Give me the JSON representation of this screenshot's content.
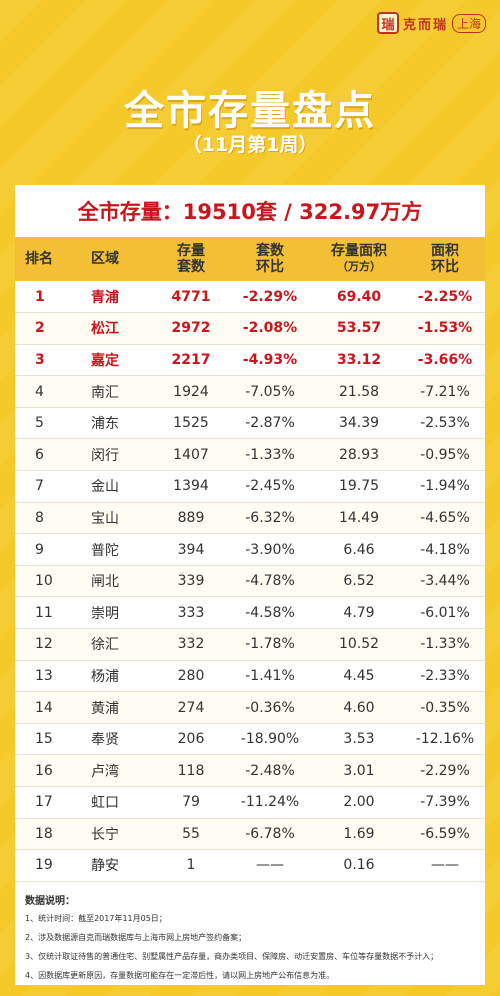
{
  "brand": {
    "seal": "瑞",
    "name": "克而瑞",
    "region": "上海"
  },
  "title": "全市存量盘点",
  "subtitle": "（11月第1周）",
  "total": "全市存量：19510套 / 322.97万方",
  "table": {
    "headers": {
      "rank": "排名",
      "area": "区域",
      "units": [
        "存量",
        "套数"
      ],
      "units_change": [
        "套数",
        "环比"
      ],
      "floor": [
        "存量面积",
        "（万方）"
      ],
      "floor_change": [
        "面积",
        "环比"
      ]
    },
    "rows": [
      {
        "rank": "1",
        "area": "青浦",
        "units": "4771",
        "units_change": "-2.29%",
        "floor": "69.40",
        "floor_change": "-2.25%"
      },
      {
        "rank": "2",
        "area": "松江",
        "units": "2972",
        "units_change": "-2.08%",
        "floor": "53.57",
        "floor_change": "-1.53%"
      },
      {
        "rank": "3",
        "area": "嘉定",
        "units": "2217",
        "units_change": "-4.93%",
        "floor": "33.12",
        "floor_change": "-3.66%"
      },
      {
        "rank": "4",
        "area": "南汇",
        "units": "1924",
        "units_change": "-7.05%",
        "floor": "21.58",
        "floor_change": "-7.21%"
      },
      {
        "rank": "5",
        "area": "浦东",
        "units": "1525",
        "units_change": "-2.87%",
        "floor": "34.39",
        "floor_change": "-2.53%"
      },
      {
        "rank": "6",
        "area": "闵行",
        "units": "1407",
        "units_change": "-1.33%",
        "floor": "28.93",
        "floor_change": "-0.95%"
      },
      {
        "rank": "7",
        "area": "金山",
        "units": "1394",
        "units_change": "-2.45%",
        "floor": "19.75",
        "floor_change": "-1.94%"
      },
      {
        "rank": "8",
        "area": "宝山",
        "units": "889",
        "units_change": "-6.32%",
        "floor": "14.49",
        "floor_change": "-4.65%"
      },
      {
        "rank": "9",
        "area": "普陀",
        "units": "394",
        "units_change": "-3.90%",
        "floor": "6.46",
        "floor_change": "-4.18%"
      },
      {
        "rank": "10",
        "area": "闸北",
        "units": "339",
        "units_change": "-4.78%",
        "floor": "6.52",
        "floor_change": "-3.44%"
      },
      {
        "rank": "11",
        "area": "崇明",
        "units": "333",
        "units_change": "-4.58%",
        "floor": "4.79",
        "floor_change": "-6.01%"
      },
      {
        "rank": "12",
        "area": "徐汇",
        "units": "332",
        "units_change": "-1.78%",
        "floor": "10.52",
        "floor_change": "-1.33%"
      },
      {
        "rank": "13",
        "area": "杨浦",
        "units": "280",
        "units_change": "-1.41%",
        "floor": "4.45",
        "floor_change": "-2.33%"
      },
      {
        "rank": "14",
        "area": "黄浦",
        "units": "274",
        "units_change": "-0.36%",
        "floor": "4.60",
        "floor_change": "-0.35%"
      },
      {
        "rank": "15",
        "area": "奉贤",
        "units": "206",
        "units_change": "-18.90%",
        "floor": "3.53",
        "floor_change": "-12.16%"
      },
      {
        "rank": "16",
        "area": "卢湾",
        "units": "118",
        "units_change": "-2.48%",
        "floor": "3.01",
        "floor_change": "-2.29%"
      },
      {
        "rank": "17",
        "area": "虹口",
        "units": "79",
        "units_change": "-11.24%",
        "floor": "2.00",
        "floor_change": "-7.39%"
      },
      {
        "rank": "18",
        "area": "长宁",
        "units": "55",
        "units_change": "-6.78%",
        "floor": "1.69",
        "floor_change": "-6.59%"
      },
      {
        "rank": "19",
        "area": "静安",
        "units": "1",
        "units_change": "——",
        "floor": "0.16",
        "floor_change": "——"
      }
    ]
  },
  "notes": {
    "title": "数据说明：",
    "items": [
      "1、统计时间：截至2017年11月05日；",
      "2、涉及数据源自克而瑞数据库与上海市网上房地产签约备案；",
      "3、仅统计取证待售的普通住宅、别墅属性产品存量，商办类项目、保障房、动迁安置房、车位等存量数据不予计入；",
      "4、因数据库更新原因，存量数据可能存在一定滞后性，请以网上房地产公布信息为准。"
    ]
  },
  "colors": {
    "background": "#f5c92a",
    "header_row": "#f2bf35",
    "highlight": "#c8161d"
  }
}
